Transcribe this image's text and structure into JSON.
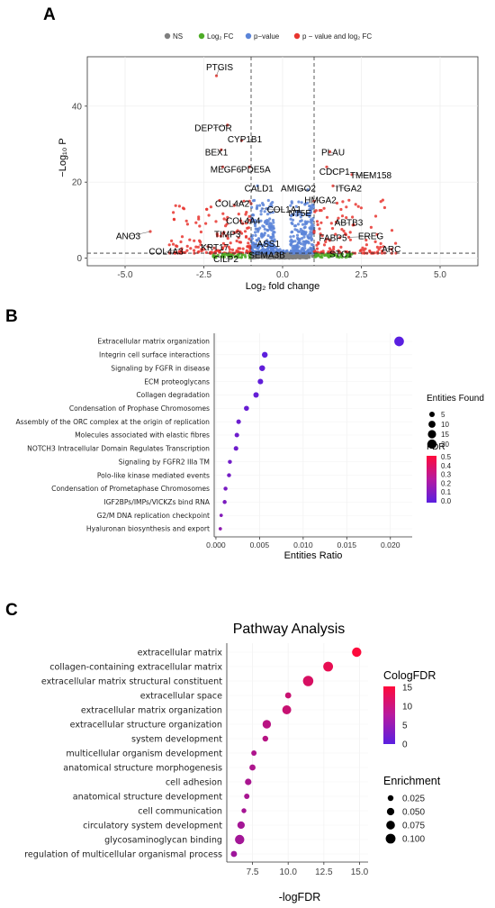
{
  "panels": {
    "a": "A",
    "b": "B",
    "c": "C"
  },
  "chart_data": [
    {
      "type": "scatter",
      "panel": "A",
      "title": "",
      "legend": {
        "position": "top",
        "entries": [
          {
            "label": "NS",
            "color": "#7f7f7f"
          },
          {
            "label": "Log₂ FC",
            "color": "#4dac26"
          },
          {
            "label": "p−value",
            "color": "#5b84d8"
          },
          {
            "label": "p − value and log₂ FC",
            "color": "#e8352f"
          }
        ]
      },
      "xlabel": "Log₂ fold change",
      "ylabel": "−Log₁₀ P",
      "xlim": [
        -6.2,
        6.2
      ],
      "ylim": [
        -2,
        53
      ],
      "xticks": [
        -5,
        -2.5,
        0,
        2.5,
        5
      ],
      "xtick_labels": [
        "-5.0",
        "-2.5",
        "0.0",
        "2.5",
        "5.0"
      ],
      "yticks": [
        0,
        20,
        40
      ],
      "ytick_labels": [
        "0",
        "20",
        "40"
      ],
      "cutoffs": {
        "log2fc": [
          -1,
          1
        ],
        "neglog10p": 1.3
      },
      "labeled_points": [
        {
          "gene": "PTGIS",
          "x": -2.1,
          "y": 48,
          "lx": -2.0,
          "ly": 49.5
        },
        {
          "gene": "DEPTOR",
          "x": -1.75,
          "y": 35,
          "lx": -2.2,
          "ly": 33.5
        },
        {
          "gene": "CYP1B1",
          "x": -1.3,
          "y": 31,
          "lx": -1.2,
          "ly": 30.5
        },
        {
          "gene": "BEX1",
          "x": -1.95,
          "y": 28.5,
          "lx": -2.1,
          "ly": 27
        },
        {
          "gene": "MEGF6",
          "x": -1.9,
          "y": 24,
          "lx": -1.8,
          "ly": 22.5
        },
        {
          "gene": "PDE5A",
          "x": -1.05,
          "y": 24,
          "lx": -0.85,
          "ly": 22.5
        },
        {
          "gene": "CALD1",
          "x": -0.8,
          "y": 19,
          "lx": -0.75,
          "ly": 17.5
        },
        {
          "gene": "COL4A2",
          "x": -1.05,
          "y": 15,
          "lx": -1.6,
          "ly": 13.5
        },
        {
          "gene": "COL1A1",
          "x": -0.65,
          "y": 13,
          "lx": 0.05,
          "ly": 12
        },
        {
          "gene": "COL4A4",
          "x": -1.05,
          "y": 10,
          "lx": -1.25,
          "ly": 9
        },
        {
          "gene": "TIMP3",
          "x": -1.3,
          "y": 6.5,
          "lx": -1.75,
          "ly": 5.5
        },
        {
          "gene": "KRT17",
          "x": -2.6,
          "y": 3.5,
          "lx": -2.15,
          "ly": 2
        },
        {
          "gene": "ASS1",
          "x": -0.9,
          "y": 3.5,
          "lx": -0.45,
          "ly": 3
        },
        {
          "gene": "SEMA3B",
          "x": -0.7,
          "y": 1.5,
          "lx": -0.5,
          "ly": 0
        },
        {
          "gene": "CILP2",
          "x": -1.6,
          "y": 0.8,
          "lx": -1.8,
          "ly": -1
        },
        {
          "gene": "ANO3",
          "x": -4.2,
          "y": 7,
          "lx": -4.9,
          "ly": 5
        },
        {
          "gene": "COL4A3",
          "x": -3.2,
          "y": 2.5,
          "lx": -3.7,
          "ly": 1
        },
        {
          "gene": "PLAU",
          "x": 1.5,
          "y": 28,
          "lx": 1.6,
          "ly": 27
        },
        {
          "gene": "CDCP1",
          "x": 1.4,
          "y": 24,
          "lx": 1.65,
          "ly": 22
        },
        {
          "gene": "TMEM158",
          "x": 2.2,
          "y": 22,
          "lx": 2.8,
          "ly": 21
        },
        {
          "gene": "AMIGO2",
          "x": 0.8,
          "y": 18,
          "lx": 0.5,
          "ly": 17.5
        },
        {
          "gene": "ITGA2",
          "x": 1.6,
          "y": 19,
          "lx": 2.1,
          "ly": 17.5
        },
        {
          "gene": "HMGA2",
          "x": 1.0,
          "y": 15,
          "lx": 1.2,
          "ly": 14.5
        },
        {
          "gene": "NT5E",
          "x": 0.9,
          "y": 12,
          "lx": 0.55,
          "ly": 11
        },
        {
          "gene": "ABTB3",
          "x": 1.7,
          "y": 9.5,
          "lx": 2.1,
          "ly": 8.5
        },
        {
          "gene": "FABP5",
          "x": 1.4,
          "y": 5,
          "lx": 1.6,
          "ly": 4.5
        },
        {
          "gene": "EREG",
          "x": 2.1,
          "y": 5.5,
          "lx": 2.8,
          "ly": 5
        },
        {
          "gene": "STC1",
          "x": 1.5,
          "y": 1.5,
          "lx": 1.85,
          "ly": 0.3
        },
        {
          "gene": "ARC",
          "x": 3.2,
          "y": 3,
          "lx": 3.45,
          "ly": 1.5
        }
      ]
    },
    {
      "type": "scatter",
      "panel": "B",
      "title": "",
      "xlabel": "Entities Ratio",
      "ylabel": "",
      "xlim": [
        -0.0002,
        0.0225
      ],
      "xticks": [
        0.0,
        0.005,
        0.01,
        0.015,
        0.02
      ],
      "xtick_labels": [
        "0.000",
        "0.005",
        "0.010",
        "0.015",
        "0.020"
      ],
      "size_legend": {
        "title": "Entities Found",
        "values": [
          "5",
          "10",
          "15",
          "20"
        ]
      },
      "color_legend": {
        "title": "FDR",
        "values": [
          "0.5",
          "0.4",
          "0.3",
          "0.2",
          "0.1",
          "0.0"
        ],
        "range": [
          0,
          0.5
        ],
        "low_color": "#5a1fe0",
        "high_color": "#ff0a3a"
      },
      "categories": [
        "Extracellular matrix organization",
        "Integrin cell surface interactions",
        "Signaling by FGFR in disease",
        "ECM proteoglycans",
        "Collagen degradation",
        "Condensation of Prophase Chromosomes",
        "Assembly of the ORC complex at the origin of replication",
        "Molecules associated with elastic fibres",
        "NOTCH3 Intracellular Domain Regulates Transcription",
        "Signaling by FGFR2 IIIa TM",
        "Polo-like kinase mediated events",
        "Condensation of Prometaphase Chromosomes",
        "IGF2BPs/IMPs/VICKZs bind RNA",
        "G2/M DNA replication checkpoint",
        "Hyaluronan biosynthesis and export"
      ],
      "x": [
        0.021,
        0.0056,
        0.0053,
        0.0051,
        0.0046,
        0.0035,
        0.0026,
        0.0024,
        0.0023,
        0.0016,
        0.0015,
        0.0011,
        0.001,
        0.0006,
        0.0005
      ],
      "entities_found": [
        22,
        6,
        6,
        5,
        5,
        4,
        3,
        3,
        3,
        2,
        2,
        2,
        2,
        1,
        1
      ],
      "fdr": [
        0.0,
        0.01,
        0.02,
        0.02,
        0.03,
        0.04,
        0.05,
        0.06,
        0.06,
        0.07,
        0.08,
        0.09,
        0.1,
        0.12,
        0.15
      ]
    },
    {
      "type": "scatter",
      "panel": "C",
      "title": "Pathway Analysis",
      "xlabel": "-logFDR",
      "ylabel": "",
      "xlim": [
        5.7,
        15.6
      ],
      "xticks": [
        7.5,
        10.0,
        12.5,
        15.0
      ],
      "xtick_labels": [
        "7.5",
        "10.0",
        "12.5",
        "15.0"
      ],
      "color_legend": {
        "title": "CologFDR",
        "values": [
          "15",
          "10",
          "5",
          "0"
        ],
        "range": [
          0,
          15
        ],
        "low_color": "#5a1fe0",
        "high_color": "#ff0a3a"
      },
      "size_legend": {
        "title": "Enrichment",
        "values": [
          "0.025",
          "0.050",
          "0.075",
          "0.100"
        ]
      },
      "categories": [
        "extracellular matrix",
        "collagen-containing extracellular matrix",
        "extracellular matrix structural constituent",
        "extracellular space",
        "extracellular matrix organization",
        "extracellular structure organization",
        "system development",
        "multicellular organism development",
        "anatomical structure morphogenesis",
        "cell adhesion",
        "anatomical structure development",
        "cell communication",
        "circulatory system development",
        "glycosaminoglycan binding",
        "regulation of multicellular organismal process"
      ],
      "x": [
        14.8,
        12.8,
        11.4,
        10.0,
        9.9,
        8.5,
        8.4,
        7.6,
        7.5,
        7.2,
        7.1,
        6.9,
        6.7,
        6.6,
        6.2
      ],
      "enrichment": [
        0.09,
        0.1,
        0.115,
        0.03,
        0.08,
        0.07,
        0.025,
        0.02,
        0.03,
        0.035,
        0.02,
        0.015,
        0.05,
        0.09,
        0.03
      ],
      "cologfdr": [
        14.8,
        12.8,
        11.4,
        10.0,
        9.9,
        8.5,
        8.4,
        7.6,
        7.5,
        7.2,
        7.1,
        6.9,
        6.7,
        6.6,
        6.2
      ]
    }
  ]
}
